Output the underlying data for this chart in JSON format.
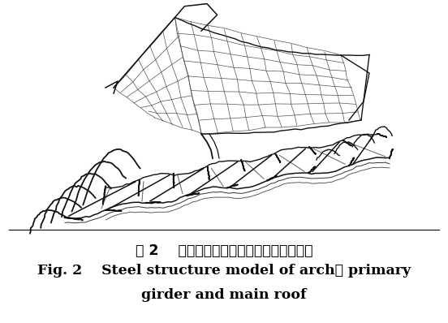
{
  "title_chinese": "图 2    拱形桁架、主梁和主屋面鈢结构模型",
  "title_english_line1": "Fig. 2    Steel structure model of arch， primary",
  "title_english_line2": "girder and main roof",
  "bg_color": "#ffffff",
  "text_color": "#000000",
  "fig_width": 5.52,
  "fig_height": 3.98,
  "dpi": 100,
  "chinese_fontsize": 12.5,
  "english_fontsize": 12.5,
  "sketch_color": "#333333",
  "sketch_color_dark": "#111111",
  "sketch_color_light": "#666666"
}
